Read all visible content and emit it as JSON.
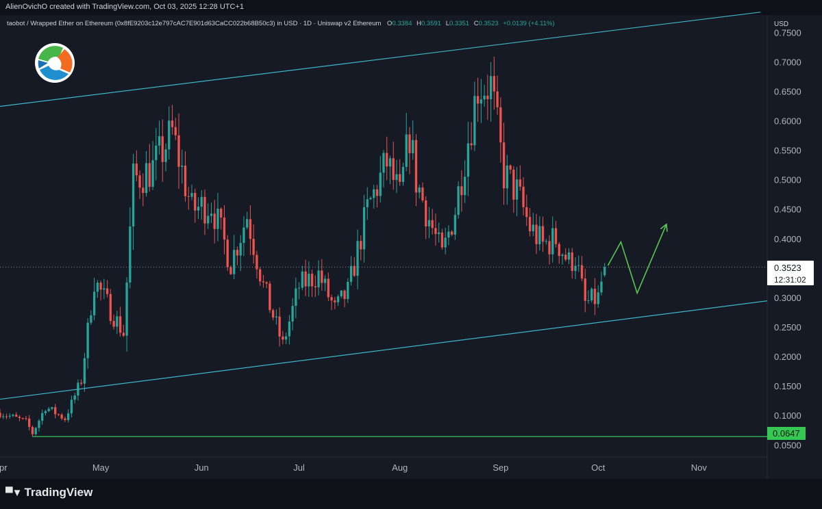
{
  "credit": "AlienOvichO created with TradingView.com, Oct 03, 2025 12:28 UTC+1",
  "legend": {
    "symbol": "taobot / Wrapped Ether on Ethereum (0x8fE9203c12e797cAC7E901d63CaCC022b68B50c3) in USD · 1D · Uniswap v2 Ethereum",
    "ohlc": [
      {
        "key": "O",
        "value": "0.3384"
      },
      {
        "key": "H",
        "value": "0.3591"
      },
      {
        "key": "L",
        "value": "0.3351"
      },
      {
        "key": "C",
        "value": "0.3523"
      }
    ],
    "change": "+0.0139 (+4.11%)"
  },
  "currency": "USD",
  "colors": {
    "background": "#161a25",
    "up": "#26a69a",
    "down": "#ef5350",
    "channel": "#3fb7c9",
    "support": "#35c653",
    "projection": "#59c84f",
    "axis_text": "#b2b5be"
  },
  "price_label": {
    "value": "0.3523",
    "countdown": "12:31:02"
  },
  "support_label": "0.0647",
  "footer_logo": "TradingView",
  "chart_data": {
    "type": "candlestick",
    "y_axis": {
      "scale": "linear",
      "range": [
        0.03,
        0.78
      ],
      "ticks": [
        "0.7500",
        "0.7000",
        "0.6500",
        "0.6000",
        "0.5500",
        "0.5000",
        "0.4500",
        "0.4000",
        "0.3000",
        "0.2500",
        "0.2000",
        "0.1500",
        "0.1000",
        "0.0500"
      ]
    },
    "x_axis": {
      "range": [
        "2025-03-31",
        "2025-11-22"
      ],
      "ticks": [
        {
          "label": "pr",
          "date": "2025-04-01"
        },
        {
          "label": "May",
          "date": "2025-05-01"
        },
        {
          "label": "Jun",
          "date": "2025-06-01"
        },
        {
          "label": "Jul",
          "date": "2025-07-01"
        },
        {
          "label": "Aug",
          "date": "2025-08-01"
        },
        {
          "label": "Sep",
          "date": "2025-09-01"
        },
        {
          "label": "Oct",
          "date": "2025-10-01"
        },
        {
          "label": "Nov",
          "date": "2025-11-01"
        }
      ]
    },
    "grid": false,
    "last_close": 0.3523,
    "price_line": 0.3523,
    "support_level": 0.0647,
    "support_start": "2025-04-10",
    "candles_description": "daily OHLC, 2025-03-31 to 2025-10-03",
    "path": [
      [
        "2025-03-31",
        0.105
      ],
      [
        "2025-04-08",
        0.09
      ],
      [
        "2025-04-10",
        0.07
      ],
      [
        "2025-04-14",
        0.115
      ],
      [
        "2025-04-20",
        0.095
      ],
      [
        "2025-04-25",
        0.16
      ],
      [
        "2025-04-29",
        0.33
      ],
      [
        "2025-05-04",
        0.28
      ],
      [
        "2025-05-08",
        0.24
      ],
      [
        "2025-05-11",
        0.5
      ],
      [
        "2025-05-17",
        0.52
      ],
      [
        "2025-05-23",
        0.58
      ],
      [
        "2025-05-29",
        0.45
      ],
      [
        "2025-06-04",
        0.46
      ],
      [
        "2025-06-10",
        0.36
      ],
      [
        "2025-06-15",
        0.44
      ],
      [
        "2025-06-20",
        0.32
      ],
      [
        "2025-06-26",
        0.22
      ],
      [
        "2025-07-01",
        0.32
      ],
      [
        "2025-07-07",
        0.34
      ],
      [
        "2025-07-12",
        0.28
      ],
      [
        "2025-07-16",
        0.31
      ],
      [
        "2025-07-22",
        0.45
      ],
      [
        "2025-07-28",
        0.53
      ],
      [
        "2025-08-01",
        0.47
      ],
      [
        "2025-08-04",
        0.58
      ],
      [
        "2025-08-06",
        0.5
      ],
      [
        "2025-08-09",
        0.45
      ],
      [
        "2025-08-14",
        0.37
      ],
      [
        "2025-08-18",
        0.45
      ],
      [
        "2025-08-25",
        0.66
      ],
      [
        "2025-08-29",
        0.66
      ],
      [
        "2025-09-02",
        0.51
      ],
      [
        "2025-09-06",
        0.48
      ],
      [
        "2025-09-10",
        0.42
      ],
      [
        "2025-09-14",
        0.39
      ],
      [
        "2025-09-18",
        0.4
      ],
      [
        "2025-09-22",
        0.36
      ],
      [
        "2025-09-24",
        0.37
      ],
      [
        "2025-09-27",
        0.29
      ],
      [
        "2025-10-01",
        0.3
      ],
      [
        "2025-10-03",
        0.3523
      ]
    ],
    "channel": {
      "upper": [
        [
          "2025-03-31",
          0.625
        ],
        [
          "2025-11-20",
          0.785
        ]
      ],
      "lower": [
        [
          "2025-03-31",
          0.128
        ],
        [
          "2025-11-22",
          0.295
        ]
      ]
    },
    "projection": [
      [
        "2025-10-04",
        0.355
      ],
      [
        "2025-10-08",
        0.395
      ],
      [
        "2025-10-13",
        0.308
      ],
      [
        "2025-10-22",
        0.425
      ]
    ]
  }
}
